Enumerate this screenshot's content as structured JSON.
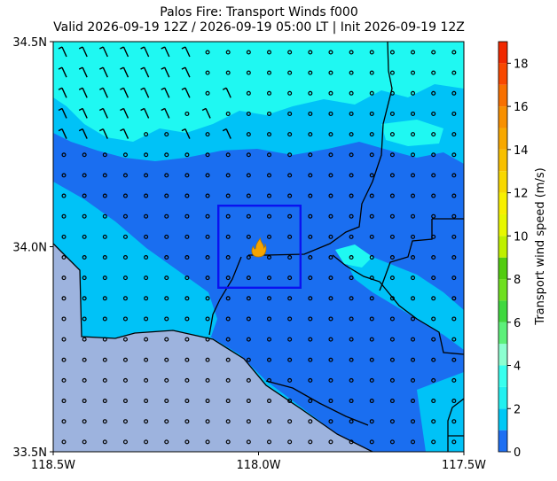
{
  "title": {
    "line1": "Palos Fire: Transport Winds f000",
    "line2": "Valid 2026-09-19 12Z / 2026-09-19 05:00 LT | Init 2026-09-19 12Z"
  },
  "map": {
    "lon_range": [
      -118.5,
      -117.5
    ],
    "lat_range": [
      33.5,
      34.5
    ],
    "x_ticks": [
      {
        "value": -118.5,
        "label": "118.5W"
      },
      {
        "value": -118.0,
        "label": "118.0W"
      },
      {
        "value": -117.5,
        "label": "117.5W"
      }
    ],
    "y_ticks": [
      {
        "value": 34.5,
        "label": "34.5N"
      },
      {
        "value": 34.0,
        "label": "34.0N"
      },
      {
        "value": 33.5,
        "label": "33.5N"
      }
    ],
    "fire_location": {
      "lon": -118.0,
      "lat": 33.99
    },
    "box": {
      "lon_min": -118.1,
      "lon_max": -117.9,
      "lat_min": 33.9,
      "lat_max": 34.1
    },
    "colors": {
      "ocean": "#9db3de",
      "speed_0_1": "#1a6ef0",
      "speed_1_2": "#00c2f7",
      "speed_2_4": "#1ff8f2",
      "box": "#0a12f0",
      "fire": "#f5a400"
    },
    "wind_barbs_icon": "calm-circle-and-barb-icon"
  },
  "colorbar": {
    "label": "Transport wind speed (m/s)",
    "ticks": [
      0,
      2,
      4,
      6,
      8,
      10,
      12,
      14,
      16,
      18
    ],
    "max": 19,
    "bands": [
      {
        "from": 0,
        "to": 1,
        "color": "#1e6ff2"
      },
      {
        "from": 1,
        "to": 2,
        "color": "#00c8f5"
      },
      {
        "from": 2,
        "to": 3,
        "color": "#22f0f0"
      },
      {
        "from": 3,
        "to": 4,
        "color": "#38ffee"
      },
      {
        "from": 4,
        "to": 5,
        "color": "#8cffd0"
      },
      {
        "from": 5,
        "to": 6,
        "color": "#5cf07a"
      },
      {
        "from": 6,
        "to": 7,
        "color": "#3fd83f"
      },
      {
        "from": 7,
        "to": 8,
        "color": "#6fe020"
      },
      {
        "from": 8,
        "to": 9,
        "color": "#52cc10"
      },
      {
        "from": 9,
        "to": 10,
        "color": "#bff000"
      },
      {
        "from": 10,
        "to": 11,
        "color": "#e8f800"
      },
      {
        "from": 11,
        "to": 12,
        "color": "#f8f000"
      },
      {
        "from": 12,
        "to": 13,
        "color": "#f8d800"
      },
      {
        "from": 13,
        "to": 14,
        "color": "#f8c000"
      },
      {
        "from": 14,
        "to": 15,
        "color": "#f8a800"
      },
      {
        "from": 15,
        "to": 16,
        "color": "#f89000"
      },
      {
        "from": 16,
        "to": 17,
        "color": "#f87000"
      },
      {
        "from": 17,
        "to": 18,
        "color": "#f84800"
      },
      {
        "from": 18,
        "to": 19,
        "color": "#f02800"
      }
    ]
  }
}
